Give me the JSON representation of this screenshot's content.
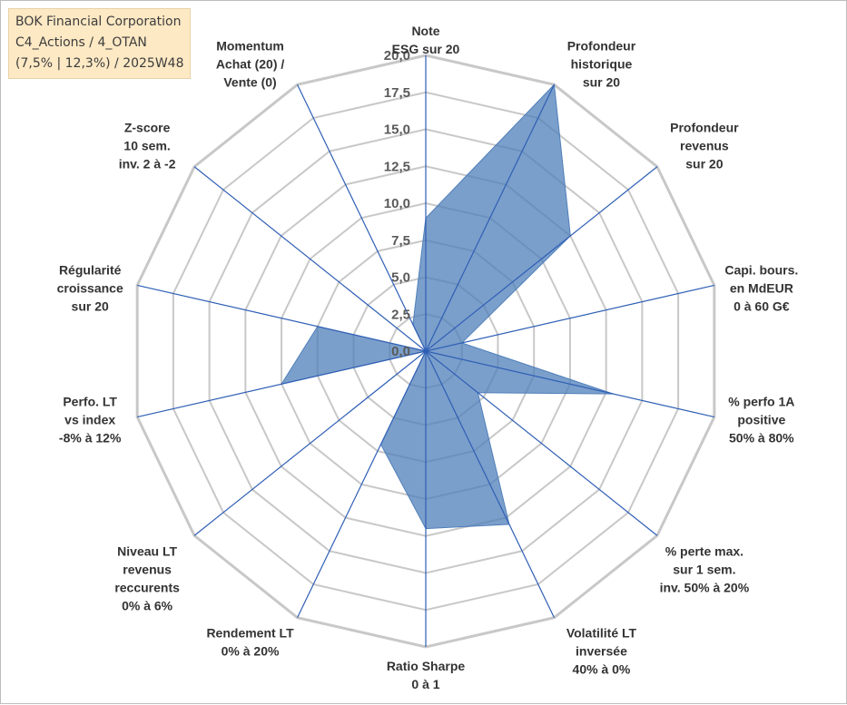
{
  "title_box": {
    "line1": "BOK Financial Corporation",
    "line2": "C4_Actions / 4_OTAN",
    "line3": "(7,5% | 12,3%) / 2025W48",
    "background": "#fde9c4"
  },
  "chart_data": {
    "type": "radar",
    "title": "",
    "range": [
      0,
      20
    ],
    "ticks": [
      "0,0",
      "2,5",
      "5,0",
      "7,5",
      "10,0",
      "12,5",
      "15,0",
      "17,5",
      "20,0"
    ],
    "axes": [
      [
        "Note",
        "ESG sur 20"
      ],
      [
        "Profondeur",
        "historique",
        "sur 20"
      ],
      [
        "Profondeur",
        "revenus",
        "sur 20"
      ],
      [
        "Capi. bours.",
        "en MdEUR",
        "0 à 60 G€"
      ],
      [
        "% perfo 1A",
        "positive",
        "50% à 80%"
      ],
      [
        "% perte max.",
        "sur 1 sem.",
        "inv. 50% à 20%"
      ],
      [
        "Volatilité LT",
        "inversée",
        "40% à 0%"
      ],
      [
        "Ratio Sharpe",
        "0 à 1"
      ],
      [
        "Rendement LT",
        "0% à 20%"
      ],
      [
        "Niveau LT",
        "revenus",
        "reccurents",
        "0% à 6%"
      ],
      [
        "Perfo. LT",
        "vs index",
        "-8% à 12%"
      ],
      [
        "Régularité",
        "croissance",
        "sur 20"
      ],
      [
        "Z-score",
        "10 sem.",
        "inv. 2 à -2"
      ],
      [
        "Momentum",
        "Achat (20) /",
        "Vente (0)"
      ]
    ],
    "series": [
      {
        "values": [
          9.0,
          20.0,
          12.5,
          2.5,
          13.0,
          4.5,
          13.0,
          12.0,
          7.0,
          0.0,
          10.0,
          7.5,
          0.0,
          2.0
        ],
        "fill": "#4f7fba",
        "fill_opacity": 0.75,
        "stroke": "#4f7fba"
      }
    ],
    "grid": true,
    "grid_color": "#c8c8c8",
    "spoke_color": "#2f5fb5"
  }
}
